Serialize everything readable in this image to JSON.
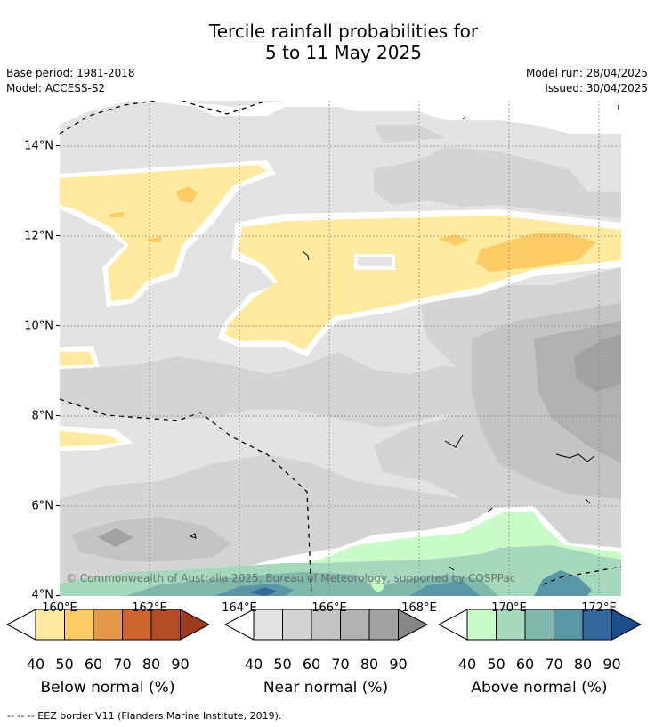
{
  "title": {
    "line1": "Tercile rainfall probabilities for",
    "line2": "5 to 11 May 2025"
  },
  "meta": {
    "base_period": "Base period: 1981-2018",
    "model": "Model: ACCESS-S2",
    "model_run": "Model run: 28/04/2025",
    "issued": "Issued: 30/04/2025"
  },
  "map": {
    "lat_labels": [
      "14°N",
      "12°N",
      "10°N",
      "8°N",
      "6°N",
      "4°N"
    ],
    "lon_labels": [
      "160°E",
      "162°E",
      "164°E",
      "166°E",
      "168°E",
      "170°E",
      "172°E"
    ],
    "copyright": "© Commonwealth of Australia 2025, Bureau of Meteorology, supported by COSPPac",
    "colors": {
      "below": [
        "#ffeaa0",
        "#fecb65",
        "#e3984a",
        "#d0642f",
        "#b24d26",
        "#9e3a1e"
      ],
      "near": [
        "#e3e3e3",
        "#d4d4d4",
        "#c4c4c4",
        "#b1b1b1",
        "#a2a2a2",
        "#868686"
      ],
      "above": [
        "#c9fbc9",
        "#a6d8be",
        "#80b8ac",
        "#5a97a6",
        "#33679e",
        "#1c4f8a"
      ]
    }
  },
  "colorbars": {
    "ticks": [
      "40",
      "50",
      "60",
      "70",
      "80",
      "90"
    ],
    "below_label": "Below normal (%)",
    "near_label": "Near normal (%)",
    "above_label": "Above normal (%)"
  },
  "footer": "-- -- -- EEZ border V11 (Flanders Marine Institute, 2019)."
}
